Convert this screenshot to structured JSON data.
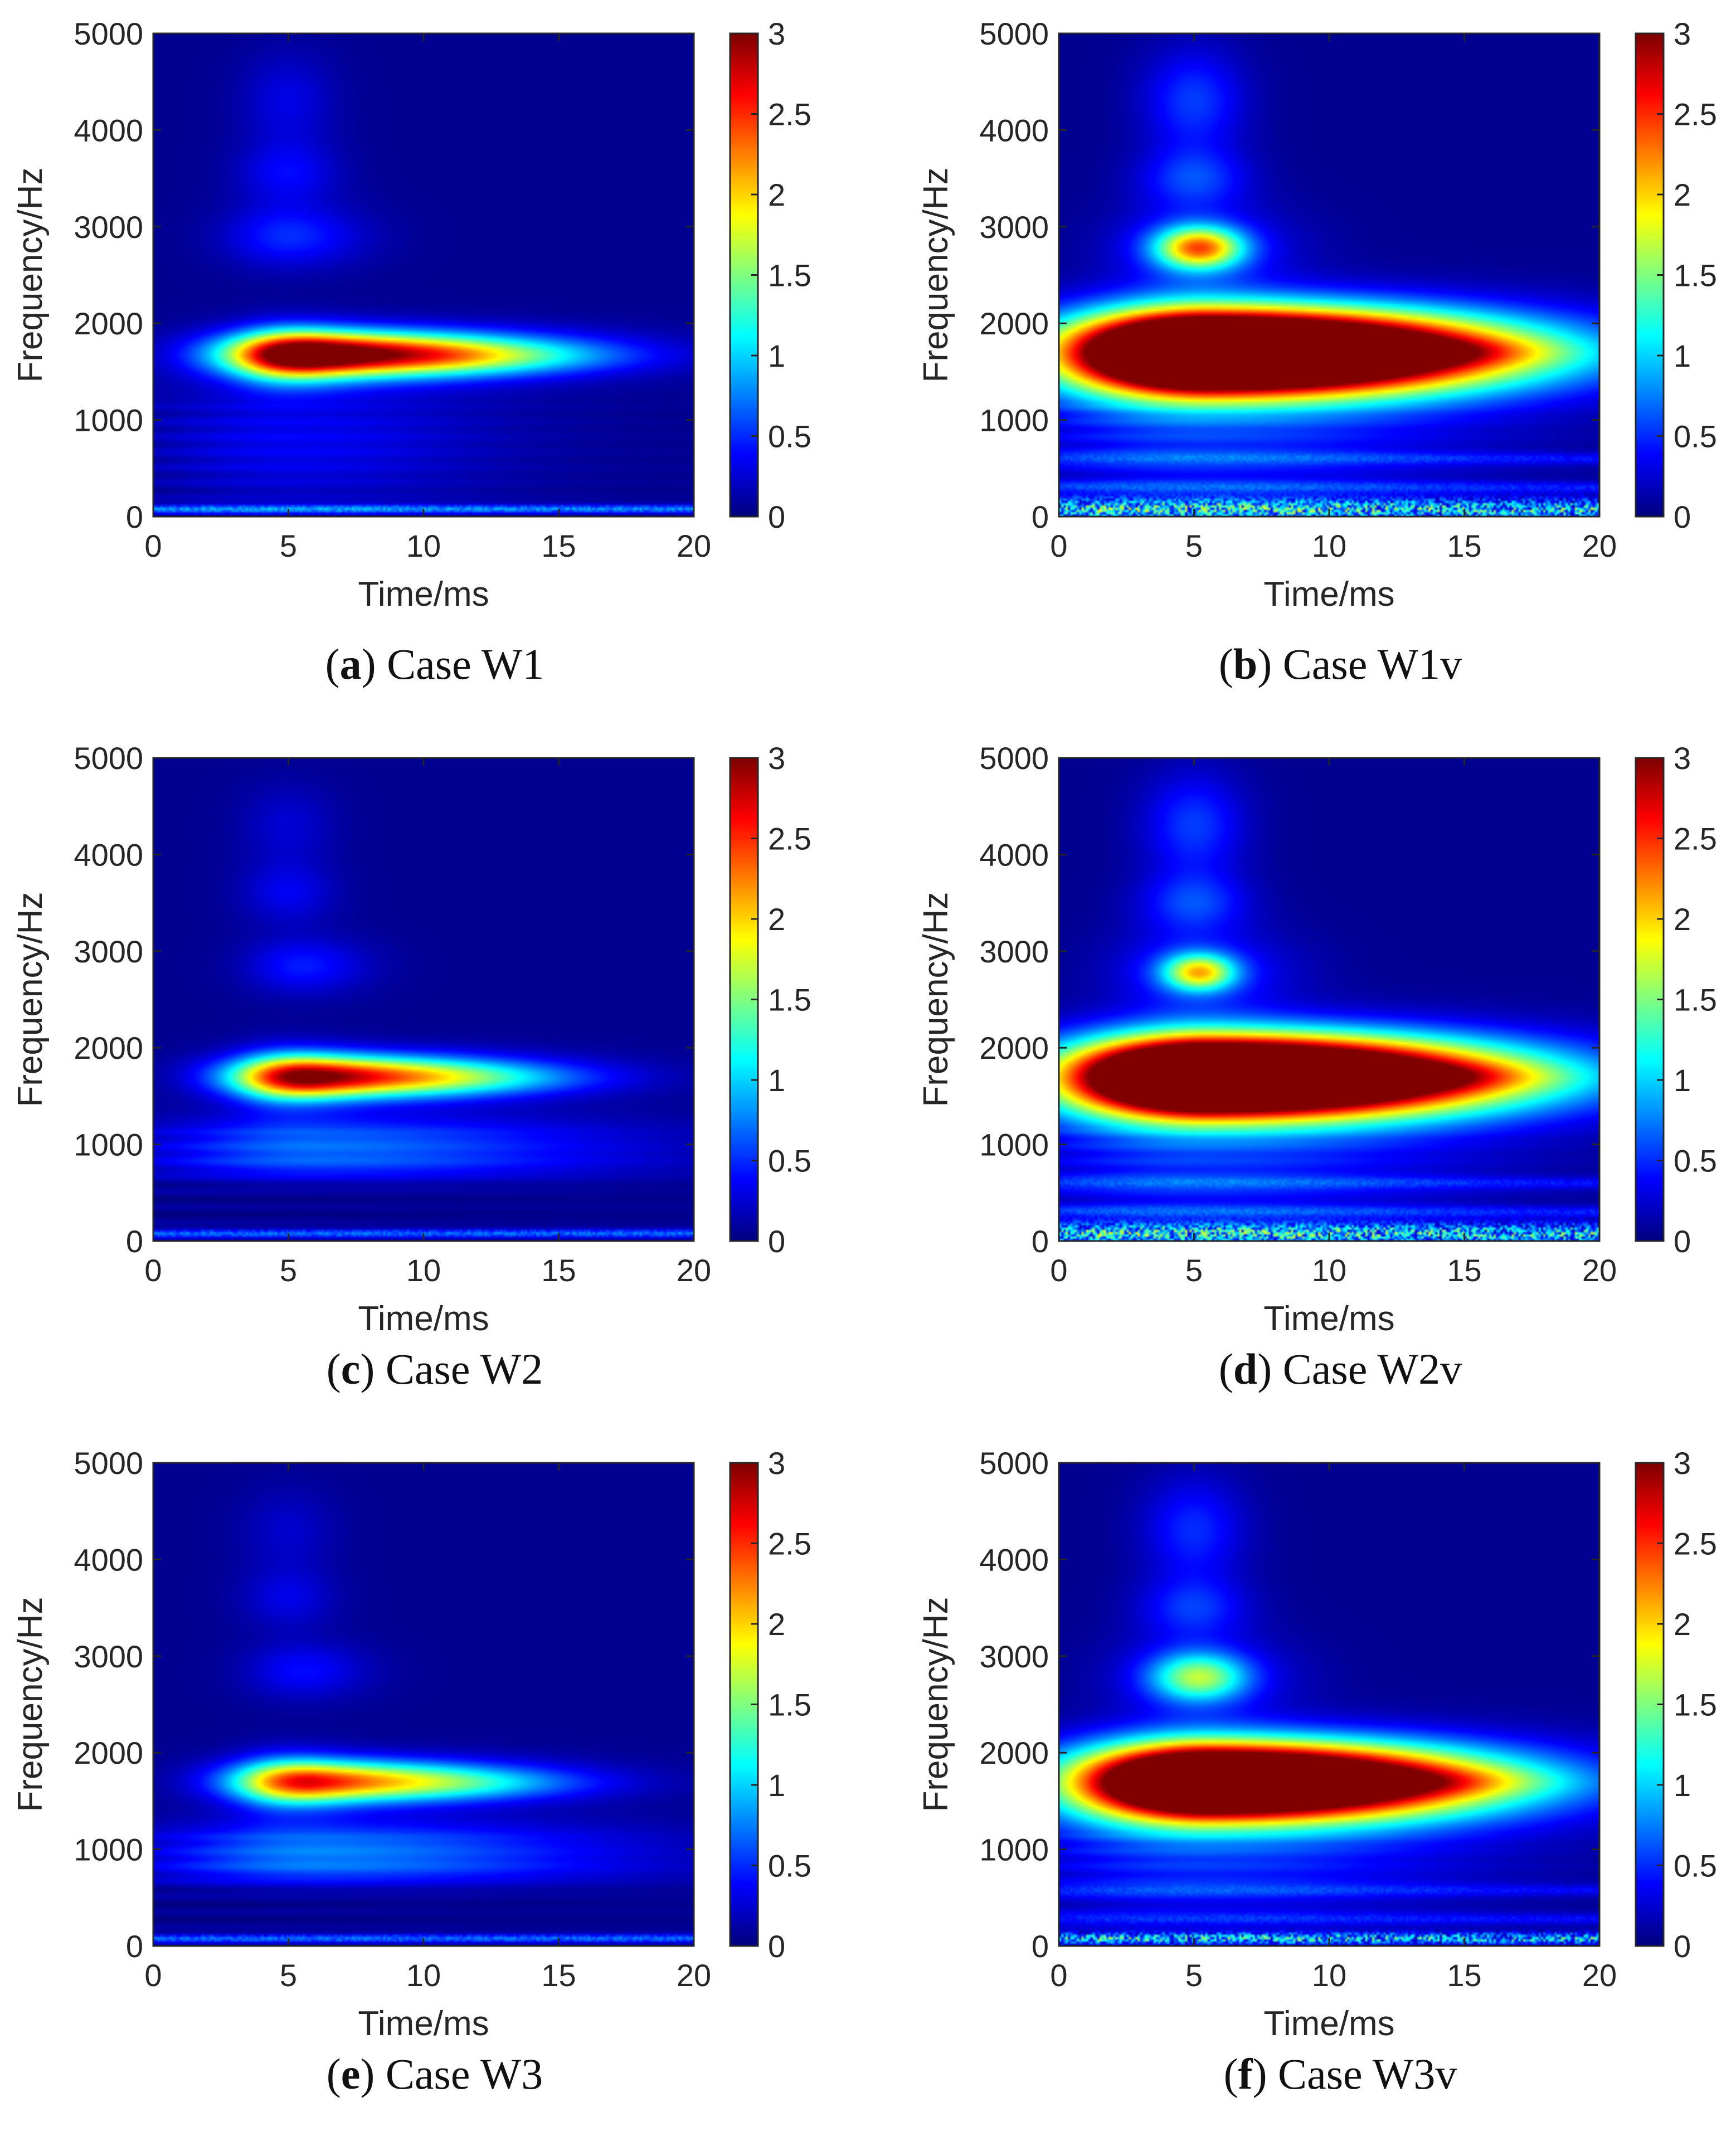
{
  "chart_data": [
    {
      "type": "heatmap",
      "panel_letter": "a",
      "caption": "Case W1",
      "xlabel": "Time/ms",
      "ylabel": "Frequency/Hz",
      "xlim": [
        0,
        20
      ],
      "ylim": [
        0,
        5000
      ],
      "xticks": [
        0,
        5,
        10,
        15,
        20
      ],
      "yticks": [
        0,
        1000,
        2000,
        3000,
        4000,
        5000
      ],
      "colorbar": {
        "min": 0,
        "max": 3,
        "ticks": [
          0,
          0.5,
          1,
          1.5,
          2,
          2.5,
          3
        ]
      },
      "features": [
        {
          "kind": "blob",
          "t": 6.0,
          "f": 1680,
          "st": 2.4,
          "sf": 160,
          "amp": 3.1,
          "skew": 2.4
        },
        {
          "kind": "blob",
          "t": 4.8,
          "f": 1650,
          "st": 1.2,
          "sf": 220,
          "amp": 0.7,
          "skew": 1.5
        },
        {
          "kind": "blob",
          "t": 5.0,
          "f": 2900,
          "st": 1.6,
          "sf": 220,
          "amp": 0.45,
          "skew": 1.2
        },
        {
          "kind": "blob",
          "t": 5.0,
          "f": 3550,
          "st": 1.3,
          "sf": 230,
          "amp": 0.32,
          "skew": 1.0
        },
        {
          "kind": "blob",
          "t": 5.0,
          "f": 4300,
          "st": 1.2,
          "sf": 350,
          "amp": 0.25,
          "skew": 1.0
        },
        {
          "kind": "blob",
          "t": 12.0,
          "f": 1650,
          "st": 2.6,
          "sf": 100,
          "amp": 0.3,
          "skew": 1.4
        },
        {
          "kind": "blob",
          "t": 5.0,
          "f": 800,
          "st": 3.5,
          "sf": 500,
          "amp": 0.3,
          "skew": 1.5
        },
        {
          "kind": "line",
          "f": 80,
          "sf": 30,
          "amp": 0.9,
          "tmax": 20
        }
      ]
    },
    {
      "type": "heatmap",
      "panel_letter": "b",
      "caption": "Case W1v",
      "xlabel": "Time/ms",
      "ylabel": "Frequency/Hz",
      "xlim": [
        0,
        20
      ],
      "ylim": [
        0,
        5000
      ],
      "xticks": [
        0,
        5,
        10,
        15,
        20
      ],
      "yticks": [
        0,
        1000,
        2000,
        3000,
        4000,
        5000
      ],
      "colorbar": {
        "min": 0,
        "max": 3,
        "ticks": [
          0,
          0.5,
          1,
          1.5,
          2,
          2.5,
          3
        ]
      },
      "features": [
        {
          "kind": "blob",
          "t": 5.6,
          "f": 1700,
          "st": 3.6,
          "sf": 290,
          "amp": 6.5,
          "skew": 2.0
        },
        {
          "kind": "blob",
          "t": 5.2,
          "f": 2780,
          "st": 1.1,
          "sf": 150,
          "amp": 1.9,
          "skew": 1.0
        },
        {
          "kind": "blob",
          "t": 5.0,
          "f": 2780,
          "st": 2.0,
          "sf": 300,
          "amp": 0.5,
          "skew": 1.2
        },
        {
          "kind": "blob",
          "t": 5.0,
          "f": 3500,
          "st": 1.4,
          "sf": 220,
          "amp": 0.5,
          "skew": 1.0
        },
        {
          "kind": "blob",
          "t": 5.0,
          "f": 4300,
          "st": 1.3,
          "sf": 380,
          "amp": 0.5,
          "skew": 1.0
        },
        {
          "kind": "blob",
          "t": 14.0,
          "f": 1700,
          "st": 2.6,
          "sf": 100,
          "amp": 0.45,
          "skew": 1.2
        },
        {
          "kind": "blob",
          "t": 5.0,
          "f": 800,
          "st": 4.5,
          "sf": 600,
          "amp": 0.45,
          "skew": 1.6
        },
        {
          "kind": "noise",
          "f": 80,
          "sf": 70,
          "amp": 1.7,
          "tmax": 20
        },
        {
          "kind": "line",
          "f": 300,
          "sf": 40,
          "amp": 0.45,
          "tmax": 20
        },
        {
          "kind": "line",
          "f": 600,
          "sf": 40,
          "amp": 0.4,
          "tmax": 20
        }
      ]
    },
    {
      "type": "heatmap",
      "panel_letter": "c",
      "caption": "Case W2",
      "xlabel": "Time/ms",
      "ylabel": "Frequency/Hz",
      "xlim": [
        0,
        20
      ],
      "ylim": [
        0,
        5000
      ],
      "xticks": [
        0,
        5,
        10,
        15,
        20
      ],
      "yticks": [
        0,
        1000,
        2000,
        3000,
        4000,
        5000
      ],
      "colorbar": {
        "min": 0,
        "max": 3,
        "ticks": [
          0,
          0.5,
          1,
          1.5,
          2,
          2.5,
          3
        ]
      },
      "features": [
        {
          "kind": "blob",
          "t": 6.0,
          "f": 1700,
          "st": 2.2,
          "sf": 150,
          "amp": 2.65,
          "skew": 2.3
        },
        {
          "kind": "blob",
          "t": 4.8,
          "f": 1680,
          "st": 1.2,
          "sf": 220,
          "amp": 0.6,
          "skew": 1.5
        },
        {
          "kind": "blob",
          "t": 5.5,
          "f": 2850,
          "st": 1.4,
          "sf": 200,
          "amp": 0.4,
          "skew": 1.2
        },
        {
          "kind": "blob",
          "t": 5.0,
          "f": 3600,
          "st": 1.2,
          "sf": 220,
          "amp": 0.28,
          "skew": 1.0
        },
        {
          "kind": "blob",
          "t": 5.0,
          "f": 4300,
          "st": 1.2,
          "sf": 300,
          "amp": 0.2,
          "skew": 1.0
        },
        {
          "kind": "blob",
          "t": 12.0,
          "f": 1680,
          "st": 2.6,
          "sf": 100,
          "amp": 0.25,
          "skew": 1.3
        },
        {
          "kind": "blob",
          "t": 6.0,
          "f": 1050,
          "st": 4.0,
          "sf": 180,
          "amp": 0.6,
          "skew": 1.9
        },
        {
          "kind": "blob",
          "t": 6.0,
          "f": 780,
          "st": 4.5,
          "sf": 120,
          "amp": 0.35,
          "skew": 1.8
        },
        {
          "kind": "line",
          "f": 80,
          "sf": 30,
          "amp": 0.8,
          "tmax": 20
        }
      ]
    },
    {
      "type": "heatmap",
      "panel_letter": "d",
      "caption": "Case W2v",
      "xlabel": "Time/ms",
      "ylabel": "Frequency/Hz",
      "xlim": [
        0,
        20
      ],
      "ylim": [
        0,
        5000
      ],
      "xticks": [
        0,
        5,
        10,
        15,
        20
      ],
      "yticks": [
        0,
        1000,
        2000,
        3000,
        4000,
        5000
      ],
      "colorbar": {
        "min": 0,
        "max": 3,
        "ticks": [
          0,
          0.5,
          1,
          1.5,
          2,
          2.5,
          3
        ]
      },
      "features": [
        {
          "kind": "blob",
          "t": 5.6,
          "f": 1700,
          "st": 3.6,
          "sf": 280,
          "amp": 6.2,
          "skew": 2.0
        },
        {
          "kind": "blob",
          "t": 5.2,
          "f": 2780,
          "st": 0.9,
          "sf": 130,
          "amp": 1.6,
          "skew": 1.0
        },
        {
          "kind": "blob",
          "t": 5.0,
          "f": 2780,
          "st": 2.0,
          "sf": 300,
          "amp": 0.5,
          "skew": 1.2
        },
        {
          "kind": "blob",
          "t": 5.0,
          "f": 3500,
          "st": 1.4,
          "sf": 220,
          "amp": 0.5,
          "skew": 1.0
        },
        {
          "kind": "blob",
          "t": 5.0,
          "f": 4300,
          "st": 1.3,
          "sf": 380,
          "amp": 0.5,
          "skew": 1.0
        },
        {
          "kind": "blob",
          "t": 14.0,
          "f": 1700,
          "st": 2.6,
          "sf": 100,
          "amp": 0.45,
          "skew": 1.2
        },
        {
          "kind": "blob",
          "t": 5.0,
          "f": 800,
          "st": 4.5,
          "sf": 600,
          "amp": 0.45,
          "skew": 1.6
        },
        {
          "kind": "noise",
          "f": 80,
          "sf": 70,
          "amp": 1.7,
          "tmax": 20
        },
        {
          "kind": "line",
          "f": 300,
          "sf": 40,
          "amp": 0.45,
          "tmax": 20
        },
        {
          "kind": "line",
          "f": 600,
          "sf": 40,
          "amp": 0.4,
          "tmax": 20
        }
      ]
    },
    {
      "type": "heatmap",
      "panel_letter": "e",
      "caption": "Case W3",
      "xlabel": "Time/ms",
      "ylabel": "Frequency/Hz",
      "xlim": [
        0,
        20
      ],
      "ylim": [
        0,
        5000
      ],
      "xticks": [
        0,
        5,
        10,
        15,
        20
      ],
      "yticks": [
        0,
        1000,
        2000,
        3000,
        4000,
        5000
      ],
      "colorbar": {
        "min": 0,
        "max": 3,
        "ticks": [
          0,
          0.5,
          1,
          1.5,
          2,
          2.5,
          3
        ]
      },
      "features": [
        {
          "kind": "blob",
          "t": 6.0,
          "f": 1700,
          "st": 2.2,
          "sf": 150,
          "amp": 2.2,
          "skew": 2.3
        },
        {
          "kind": "blob",
          "t": 4.8,
          "f": 1680,
          "st": 1.2,
          "sf": 220,
          "amp": 0.55,
          "skew": 1.5
        },
        {
          "kind": "blob",
          "t": 5.5,
          "f": 2850,
          "st": 1.4,
          "sf": 200,
          "amp": 0.35,
          "skew": 1.2
        },
        {
          "kind": "blob",
          "t": 5.0,
          "f": 3600,
          "st": 1.2,
          "sf": 220,
          "amp": 0.25,
          "skew": 1.0
        },
        {
          "kind": "blob",
          "t": 5.0,
          "f": 4300,
          "st": 1.2,
          "sf": 300,
          "amp": 0.18,
          "skew": 1.0
        },
        {
          "kind": "blob",
          "t": 12.0,
          "f": 1680,
          "st": 2.6,
          "sf": 100,
          "amp": 0.25,
          "skew": 1.3
        },
        {
          "kind": "blob",
          "t": 6.0,
          "f": 1050,
          "st": 4.0,
          "sf": 180,
          "amp": 0.65,
          "skew": 1.9
        },
        {
          "kind": "blob",
          "t": 6.0,
          "f": 780,
          "st": 4.5,
          "sf": 120,
          "amp": 0.4,
          "skew": 1.8
        },
        {
          "kind": "line",
          "f": 80,
          "sf": 30,
          "amp": 0.8,
          "tmax": 20
        }
      ]
    },
    {
      "type": "heatmap",
      "panel_letter": "f",
      "caption": "Case W3v",
      "xlabel": "Time/ms",
      "ylabel": "Frequency/Hz",
      "xlim": [
        0,
        20
      ],
      "ylim": [
        0,
        5000
      ],
      "xticks": [
        0,
        5,
        10,
        15,
        20
      ],
      "yticks": [
        0,
        1000,
        2000,
        3000,
        4000,
        5000
      ],
      "colorbar": {
        "min": 0,
        "max": 3,
        "ticks": [
          0,
          0.5,
          1,
          1.5,
          2,
          2.5,
          3
        ]
      },
      "features": [
        {
          "kind": "blob",
          "t": 5.6,
          "f": 1700,
          "st": 3.4,
          "sf": 270,
          "amp": 5.6,
          "skew": 2.0
        },
        {
          "kind": "blob",
          "t": 5.2,
          "f": 2780,
          "st": 1.2,
          "sf": 170,
          "amp": 1.2,
          "skew": 1.0
        },
        {
          "kind": "blob",
          "t": 5.0,
          "f": 2780,
          "st": 2.0,
          "sf": 300,
          "amp": 0.45,
          "skew": 1.2
        },
        {
          "kind": "blob",
          "t": 5.0,
          "f": 3500,
          "st": 1.4,
          "sf": 220,
          "amp": 0.45,
          "skew": 1.0
        },
        {
          "kind": "blob",
          "t": 5.0,
          "f": 4300,
          "st": 1.3,
          "sf": 380,
          "amp": 0.45,
          "skew": 1.0
        },
        {
          "kind": "blob",
          "t": 14.0,
          "f": 1700,
          "st": 2.6,
          "sf": 100,
          "amp": 0.4,
          "skew": 1.2
        },
        {
          "kind": "blob",
          "t": 5.0,
          "f": 900,
          "st": 4.5,
          "sf": 500,
          "amp": 0.45,
          "skew": 1.6
        },
        {
          "kind": "noise",
          "f": 80,
          "sf": 40,
          "amp": 1.6,
          "tmax": 20
        },
        {
          "kind": "line",
          "f": 280,
          "sf": 40,
          "amp": 0.4,
          "tmax": 20
        },
        {
          "kind": "line",
          "f": 580,
          "sf": 40,
          "amp": 0.35,
          "tmax": 20
        }
      ]
    }
  ]
}
